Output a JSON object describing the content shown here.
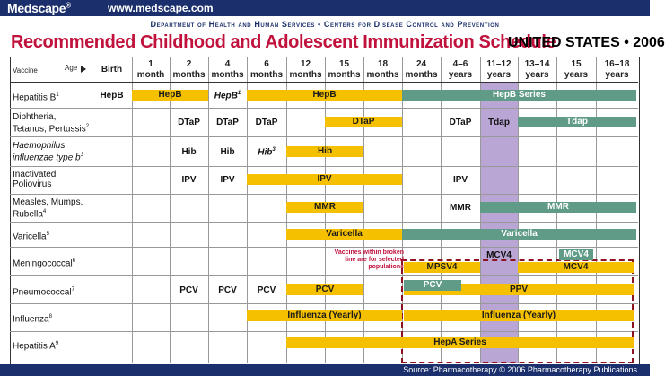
{
  "header": {
    "brand": "Medscape",
    "registered": "®",
    "url": "www.medscape.com"
  },
  "department": "Department of Health and Human Services • Centers for Disease Control and Prevention",
  "title": "Recommended Childhood and Adolescent Immunization Schedule",
  "subtitle": "UNITED STATES • 2006",
  "table_headers": {
    "vaccine": "Vaccine",
    "age": "Age",
    "cols": [
      {
        "l1": "Birth",
        "l2": ""
      },
      {
        "l1": "1",
        "l2": "month"
      },
      {
        "l1": "2",
        "l2": "months"
      },
      {
        "l1": "4",
        "l2": "months"
      },
      {
        "l1": "6",
        "l2": "months"
      },
      {
        "l1": "12",
        "l2": "months"
      },
      {
        "l1": "15",
        "l2": "months"
      },
      {
        "l1": "18",
        "l2": "months"
      },
      {
        "l1": "24",
        "l2": "months"
      },
      {
        "l1": "4–6",
        "l2": "years"
      },
      {
        "l1": "11–12",
        "l2": "years"
      },
      {
        "l1": "13–14",
        "l2": "years"
      },
      {
        "l1": "15",
        "l2": "years"
      },
      {
        "l1": "16–18",
        "l2": "years"
      }
    ]
  },
  "vaccines": [
    {
      "l1": "Hepatitis B",
      "sup": "1",
      "l2": ""
    },
    {
      "l1": "Diphtheria,",
      "l2": "Tetanus, Pertussis",
      "sup": "2"
    },
    {
      "l1": "Haemophilus",
      "l2": "influenzae type b",
      "sup": "3"
    },
    {
      "l1": "Inactivated",
      "l2": "Poliovirus",
      "sup": ""
    },
    {
      "l1": "Measles, Mumps,",
      "l2": "Rubella",
      "sup": "4"
    },
    {
      "l1": "Varicella",
      "sup": "5",
      "l2": ""
    },
    {
      "l1": "Meningococcal",
      "sup": "6",
      "l2": ""
    },
    {
      "l1": "Pneumococcal",
      "sup": "7",
      "l2": ""
    },
    {
      "l1": "Influenza",
      "sup": "8",
      "l2": ""
    },
    {
      "l1": "Hepatitis A",
      "sup": "9",
      "l2": ""
    }
  ],
  "doses": {
    "hepb_birth": "HepB",
    "hepb_4m": "HepB",
    "hepb_4m_sup": "1",
    "dtap_2": "DTaP",
    "dtap_4": "DTaP",
    "dtap_6": "DTaP",
    "dtap_46": "DTaP",
    "hib_2": "Hib",
    "hib_4": "Hib",
    "hib_6": "Hib",
    "hib_6_sup": "3",
    "ipv_2": "IPV",
    "ipv_4": "IPV",
    "ipv_46": "IPV",
    "mmr_46": "MMR",
    "pcv_2": "PCV",
    "pcv_4": "PCV",
    "pcv_6": "PCV"
  },
  "bars": {
    "hepb_1m": "HepB",
    "hepb_6_18": "HepB",
    "hepb_series": "HepB Series",
    "dtap_15_18": "DTaP",
    "tdap_1112": "Tdap",
    "tdap_1318": "Tdap",
    "hib_12_15": "Hib",
    "ipv_6_18": "IPV",
    "mmr_12_15": "MMR",
    "mmr_1118": "MMR",
    "varicella_12_18": "Varicella",
    "varicella_24up": "Varicella",
    "mcv4_1112": "MCV4",
    "mcv4_15": "MCV4",
    "mpsv4": "MPSV4",
    "mcv4_low": "MCV4",
    "pcv_12_15": "PCV",
    "pcv_24": "PCV",
    "ppv": "PPV",
    "flu_6_18": "Influenza (Yearly)",
    "flu_24up": "Influenza (Yearly)",
    "hepa_series": "HepA Series"
  },
  "note": "Vaccines within broken line are for selected populations",
  "source": "Source: Pharmacotherapy © 2006 Pharmacotherapy Publications",
  "colors": {
    "navy": "#1a2f6b",
    "title_red": "#c0123c",
    "yellow": "#f5c000",
    "green": "#5f9b86",
    "purple": "#b9a6d4",
    "dash": "#8b1420"
  }
}
